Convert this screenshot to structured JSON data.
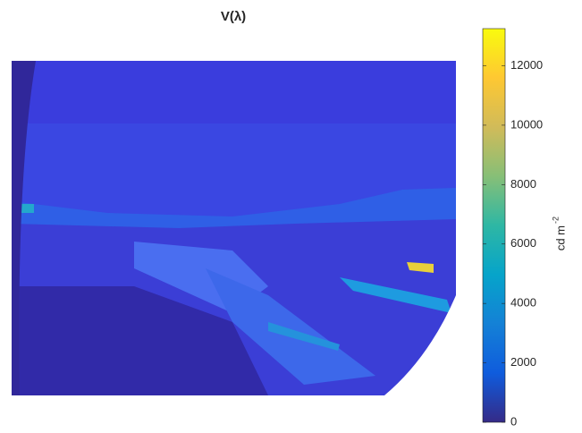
{
  "chart_data": {
    "type": "image",
    "title": "V(λ)",
    "colorbar": {
      "label": "cd m",
      "label_exponent": "-2",
      "clim": [
        0,
        13250
      ],
      "ticks": [
        0,
        2000,
        4000,
        6000,
        8000,
        10000,
        12000
      ],
      "colormap": [
        "#352a87",
        "#0f5cdd",
        "#1481d6",
        "#06a4ca",
        "#2eb7a4",
        "#87bf77",
        "#d1bb59",
        "#fec832",
        "#f9fb0e"
      ]
    }
  }
}
